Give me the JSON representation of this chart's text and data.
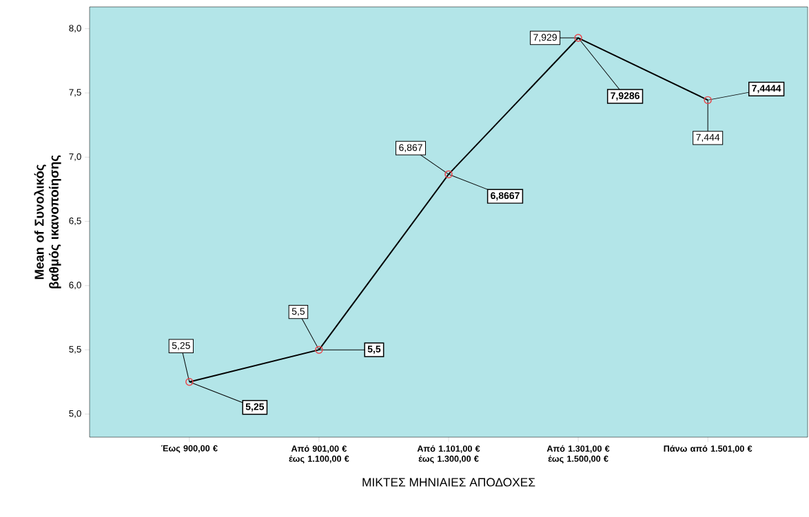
{
  "chart_data": {
    "type": "line",
    "xlabel": "ΜΙΚΤΕΣ ΜΗΝΙΑΙΕΣ ΑΠΟΔΟΧΕΣ",
    "ylabel": "Mean of Συνολικός βαθμός ικανοποίησης",
    "categories": [
      "Έως 900,00 €",
      "Από 901,00 € έως 1.100,00 €",
      "Από 1.101,00 € έως 1.300,00 €",
      "Από 1.301,00 € έως 1.500,00 €",
      "Πάνω από 1.501,00 €"
    ],
    "series": [
      {
        "color": "#000000",
        "colors": [
          "#e8474c",
          "#e8474c",
          "#e8474c",
          "#e8474c",
          "#e8474c"
        ],
        "values": [
          5.25,
          5.5,
          6.8667,
          7.9286,
          7.4444
        ],
        "value_labels": [
          "5,25",
          "5,5",
          "6,8667",
          "7,9286",
          "7,4444"
        ]
      }
    ],
    "ylim": [
      4.82,
      8.17
    ],
    "yticks": [
      {
        "value": 5,
        "label": "5,0"
      },
      {
        "value": 5.5,
        "label": "5,5"
      },
      {
        "value": 6,
        "label": "6,0"
      },
      {
        "value": 6.5,
        "label": "6,5"
      },
      {
        "value": 7,
        "label": "7,0"
      },
      {
        "value": 7.5,
        "label": "7,5"
      },
      {
        "value": 8,
        "label": "8,0"
      }
    ],
    "marker": "circle",
    "line_style": "solid",
    "grid": false,
    "annotations": [
      {
        "text": "5,25",
        "x": "Έως 900,00 €",
        "y": 5.25
      },
      {
        "text": "5,5",
        "x": "Από 901,00 € έως 1.100,00 €",
        "y": 5.5
      },
      {
        "text": "6,867",
        "x": "Από 1.101,00 € έως 1.300,00 €",
        "y": 6.8667
      },
      {
        "text": "7,929",
        "x": "Από 1.301,00 € έως 1.500,00 €",
        "y": 7.9286
      },
      {
        "text": "7,444",
        "x": "Πάνω από 1.501,00 €",
        "y": 7.4444
      }
    ]
  }
}
